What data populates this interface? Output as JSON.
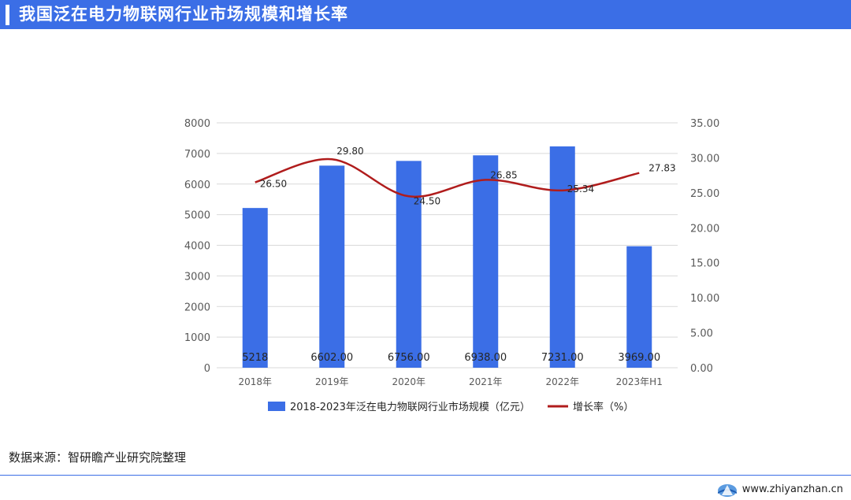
{
  "header": {
    "title": "我国泛在电力物联网行业市场规模和增长率"
  },
  "source": {
    "text": "数据来源：智研瞻产业研究院整理"
  },
  "footer": {
    "site": "www.zhiyanzhan.cn",
    "logo_icon": "globe-logo-icon"
  },
  "colors": {
    "accent": "#3b6ee6",
    "bar": "#3b6ee6",
    "line": "#b01c1c"
  },
  "chart_data": {
    "type": "bar",
    "categories": [
      "2018年",
      "2019年",
      "2020年",
      "2021年",
      "2022年",
      "2023年H1"
    ],
    "series": [
      {
        "name": "2018-2023年泛在电力物联网行业市场规模（亿元）",
        "type": "bar",
        "axis": "left",
        "values": [
          5218,
          6602,
          6756,
          6938,
          7231,
          3969
        ],
        "labels": [
          "5218",
          "6602.00",
          "6756.00",
          "6938.00",
          "7231.00",
          "3969.00"
        ]
      },
      {
        "name": "增长率（%）",
        "type": "line",
        "axis": "right",
        "values": [
          26.5,
          29.8,
          24.5,
          26.85,
          25.34,
          27.83
        ],
        "labels": [
          "26.50",
          "29.80",
          "24.50",
          "26.85",
          "25.34",
          "27.83"
        ]
      }
    ],
    "y_left": {
      "min": 0,
      "max": 8000,
      "ticks": [
        "0",
        "1000",
        "2000",
        "3000",
        "4000",
        "5000",
        "6000",
        "7000",
        "8000"
      ]
    },
    "y_right": {
      "min": 0,
      "max": 35,
      "ticks": [
        "0.00",
        "5.00",
        "10.00",
        "15.00",
        "20.00",
        "25.00",
        "30.00",
        "35.00"
      ]
    },
    "grid": true,
    "legend": "bottom"
  }
}
